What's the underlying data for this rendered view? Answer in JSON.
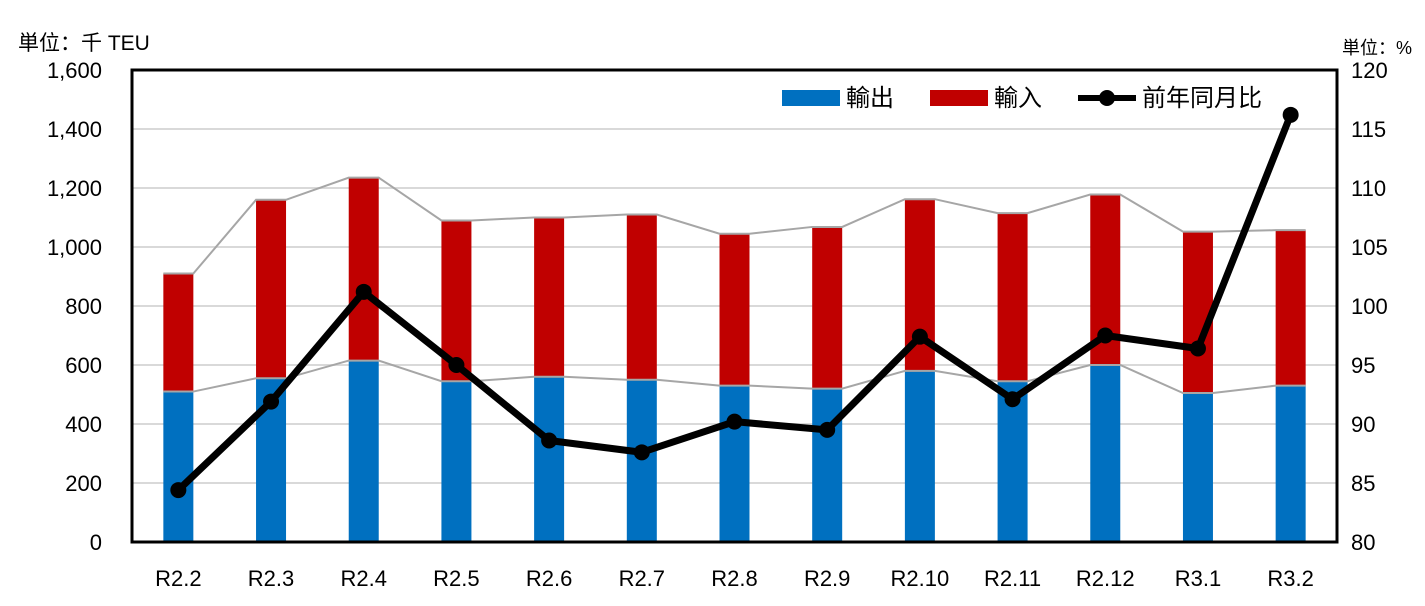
{
  "chart_data": {
    "type": "bar",
    "stacked": true,
    "categories": [
      "R2.2",
      "R2.3",
      "R2.4",
      "R2.5",
      "R2.6",
      "R2.7",
      "R2.8",
      "R2.9",
      "R2.10",
      "R2.11",
      "R2.12",
      "R3.1",
      "R3.2"
    ],
    "left_axis_unit": "単位：千 TEU",
    "right_axis_unit": "単位：%",
    "ylim_left": [
      0,
      1600
    ],
    "ytick_step_left": 200,
    "ytick_labels_left": [
      "0",
      "200",
      "400",
      "600",
      "800",
      "1,000",
      "1,200",
      "1,400",
      "1,600"
    ],
    "ylim_right": [
      80,
      120
    ],
    "ytick_step_right": 5,
    "ytick_labels_right": [
      "80",
      "85",
      "90",
      "95",
      "100",
      "105",
      "110",
      "115",
      "120"
    ],
    "grid": true,
    "legend_position": "top-right",
    "series": [
      {
        "name": "輸出",
        "kind": "bar",
        "axis": "left",
        "color": "#0070C0",
        "values": [
          510,
          555,
          615,
          545,
          560,
          550,
          530,
          520,
          580,
          545,
          600,
          505,
          530
        ]
      },
      {
        "name": "輸入",
        "kind": "bar",
        "axis": "left",
        "color": "#C00000",
        "values": [
          400,
          605,
          620,
          545,
          540,
          560,
          515,
          548,
          582,
          570,
          578,
          547,
          527
        ]
      },
      {
        "name": "前年同月比",
        "kind": "line",
        "axis": "right",
        "color": "#000000",
        "values": [
          84.4,
          91.9,
          101.2,
          95.0,
          88.6,
          87.6,
          90.2,
          89.5,
          97.4,
          92.1,
          97.5,
          96.4,
          116.2
        ]
      }
    ]
  }
}
